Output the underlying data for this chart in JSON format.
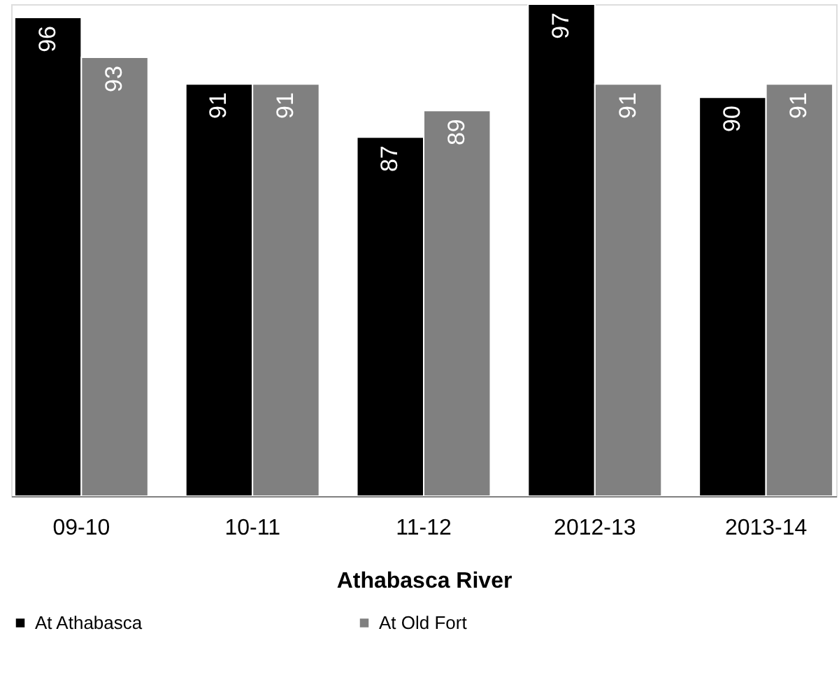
{
  "chart_data": {
    "type": "bar",
    "xlabel": "Athabasca River",
    "categories": [
      "09-10",
      "10-11",
      "11-12",
      "2012-13",
      "2013-14"
    ],
    "series": [
      {
        "name": "At Athabasca",
        "color": "#000000",
        "values": [
          96,
          91,
          87,
          97,
          90
        ]
      },
      {
        "name": "At Old Fort",
        "color": "#808080",
        "values": [
          93,
          91,
          89,
          91,
          91
        ]
      }
    ],
    "ylim": [
      60,
      97
    ],
    "data_labels": true,
    "tick_labels": "x",
    "legend": "bottom",
    "grid": false
  }
}
